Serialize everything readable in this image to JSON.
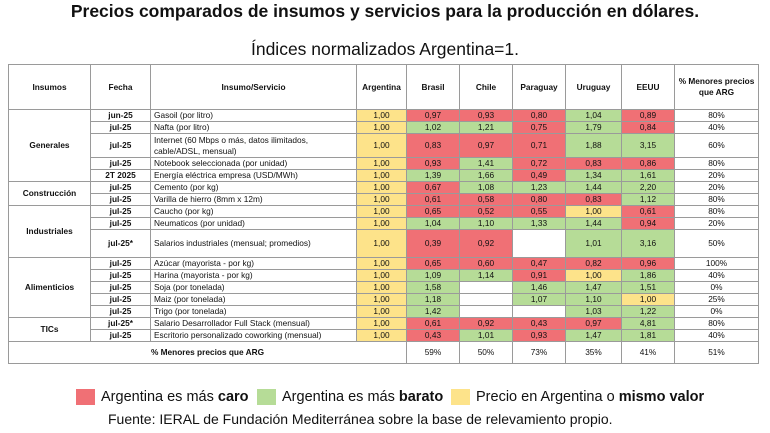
{
  "title": "Precios comparados de insumos y servicios para la producción en dólares.",
  "subtitle": "Índices normalizados Argentina=1.",
  "headers": [
    "Insumos",
    "Fecha",
    "Insumo/Servicio",
    "Argentina",
    "Brasil",
    "Chile",
    "Paraguay",
    "Uruguay",
    "EEUU",
    "% Menores precios que ARG"
  ],
  "categories": {
    "generales": "Generales",
    "construccion": "Construcción",
    "industriales": "Industriales",
    "alimenticios": "Alimenticios",
    "tics": "TICs"
  },
  "rows": [
    {
      "fecha": "jun-25",
      "item": "Gasoil (por litro)",
      "arg": "1,00",
      "bra": "0,97",
      "chi": "0,93",
      "par": "0,80",
      "uru": "1,04",
      "eeuu": "0,89",
      "pct": "80%"
    },
    {
      "fecha": "jul-25",
      "item": "Nafta (por litro)",
      "arg": "1,00",
      "bra": "1,02",
      "chi": "1,21",
      "par": "0,75",
      "uru": "1,79",
      "eeuu": "0,84",
      "pct": "40%"
    },
    {
      "fecha": "jul-25",
      "item": "Internet (60 Mbps o más, datos ilimitados, cable/ADSL, mensual)",
      "arg": "1,00",
      "bra": "0,83",
      "chi": "0,97",
      "par": "0,71",
      "uru": "1,88",
      "eeuu": "3,15",
      "pct": "60%"
    },
    {
      "fecha": "jul-25",
      "item": "Notebook seleccionada (por unidad)",
      "arg": "1,00",
      "bra": "0,93",
      "chi": "1,41",
      "par": "0,72",
      "uru": "0,83",
      "eeuu": "0,86",
      "pct": "80%"
    },
    {
      "fecha": "2T 2025",
      "item": "Energía eléctrica empresa (USD/MWh)",
      "arg": "1,00",
      "bra": "1,39",
      "chi": "1,66",
      "par": "0,49",
      "uru": "1,34",
      "eeuu": "1,61",
      "pct": "20%"
    },
    {
      "fecha": "jul-25",
      "item": "Cemento (por kg)",
      "arg": "1,00",
      "bra": "0,67",
      "chi": "1,08",
      "par": "1,23",
      "uru": "1,44",
      "eeuu": "2,20",
      "pct": "20%"
    },
    {
      "fecha": "jul-25",
      "item": "Varilla de hierro (8mm x 12m)",
      "arg": "1,00",
      "bra": "0,61",
      "chi": "0,58",
      "par": "0,80",
      "uru": "0,83",
      "eeuu": "1,12",
      "pct": "80%"
    },
    {
      "fecha": "jul-25",
      "item": "Caucho (por kg)",
      "arg": "1,00",
      "bra": "0,65",
      "chi": "0,52",
      "par": "0,55",
      "uru": "1,00",
      "eeuu": "0,61",
      "pct": "80%"
    },
    {
      "fecha": "jul-25",
      "item": "Neumaticos (por unidad)",
      "arg": "1,00",
      "bra": "1,04",
      "chi": "1,10",
      "par": "1,33",
      "uru": "1,44",
      "eeuu": "0,94",
      "pct": "20%"
    },
    {
      "fecha": "jul-25*",
      "item": "Salarios industriales (mensual; promedios)",
      "arg": "1,00",
      "bra": "0,39",
      "chi": "0,92",
      "par": "",
      "uru": "1,01",
      "eeuu": "3,16",
      "pct": "50%"
    },
    {
      "fecha": "jul-25",
      "item": "Azúcar (mayorista - por kg)",
      "arg": "1,00",
      "bra": "0,65",
      "chi": "0,60",
      "par": "0,47",
      "uru": "0,82",
      "eeuu": "0,96",
      "pct": "100%"
    },
    {
      "fecha": "jul-25",
      "item": "Harina (mayorista - por kg)",
      "arg": "1,00",
      "bra": "1,09",
      "chi": "1,14",
      "par": "0,91",
      "uru": "1,00",
      "eeuu": "1,86",
      "pct": "40%"
    },
    {
      "fecha": "jul-25",
      "item": "Soja (por tonelada)",
      "arg": "1,00",
      "bra": "1,58",
      "chi": "",
      "par": "1,46",
      "uru": "1,47",
      "eeuu": "1,51",
      "pct": "0%"
    },
    {
      "fecha": "jul-25",
      "item": "Maiz (por tonelada)",
      "arg": "1,00",
      "bra": "1,18",
      "chi": "",
      "par": "1,07",
      "uru": "1,10",
      "eeuu": "1,00",
      "pct": "25%"
    },
    {
      "fecha": "jul-25",
      "item": "Trigo (por tonelada)",
      "arg": "1,00",
      "bra": "1,42",
      "chi": "",
      "par": "",
      "uru": "1,03",
      "eeuu": "1,22",
      "pct": "0%"
    },
    {
      "fecha": "jul-25*",
      "item": "Salario Desarrollador Full Stack (mensual)",
      "arg": "1,00",
      "bra": "0,61",
      "chi": "0,92",
      "par": "0,43",
      "uru": "0,97",
      "eeuu": "4,81",
      "pct": "80%"
    },
    {
      "fecha": "jul-25",
      "item": "Escritorio personalizado coworking (mensual)",
      "arg": "1,00",
      "bra": "0,43",
      "chi": "1,01",
      "par": "0,93",
      "uru": "1,47",
      "eeuu": "1,81",
      "pct": "40%"
    }
  ],
  "totals": {
    "label": "% Menores precios que ARG",
    "bra": "59%",
    "chi": "50%",
    "par": "73%",
    "uru": "35%",
    "eeuu": "41%",
    "pct": "51%"
  },
  "legend": {
    "red_prefix": "Argentina es más ",
    "red_bold": "caro",
    "green_prefix": "Argentina es más ",
    "green_bold": "barato",
    "yellow_prefix": "Precio en Argentina o ",
    "yellow_bold": "mismo valor"
  },
  "source": "Fuente: IERAL de Fundación Mediterránea sobre la base de relevamiento propio.",
  "colors": {
    "red": "#f07075",
    "green": "#b6dc97",
    "yellow": "#fde38a"
  }
}
